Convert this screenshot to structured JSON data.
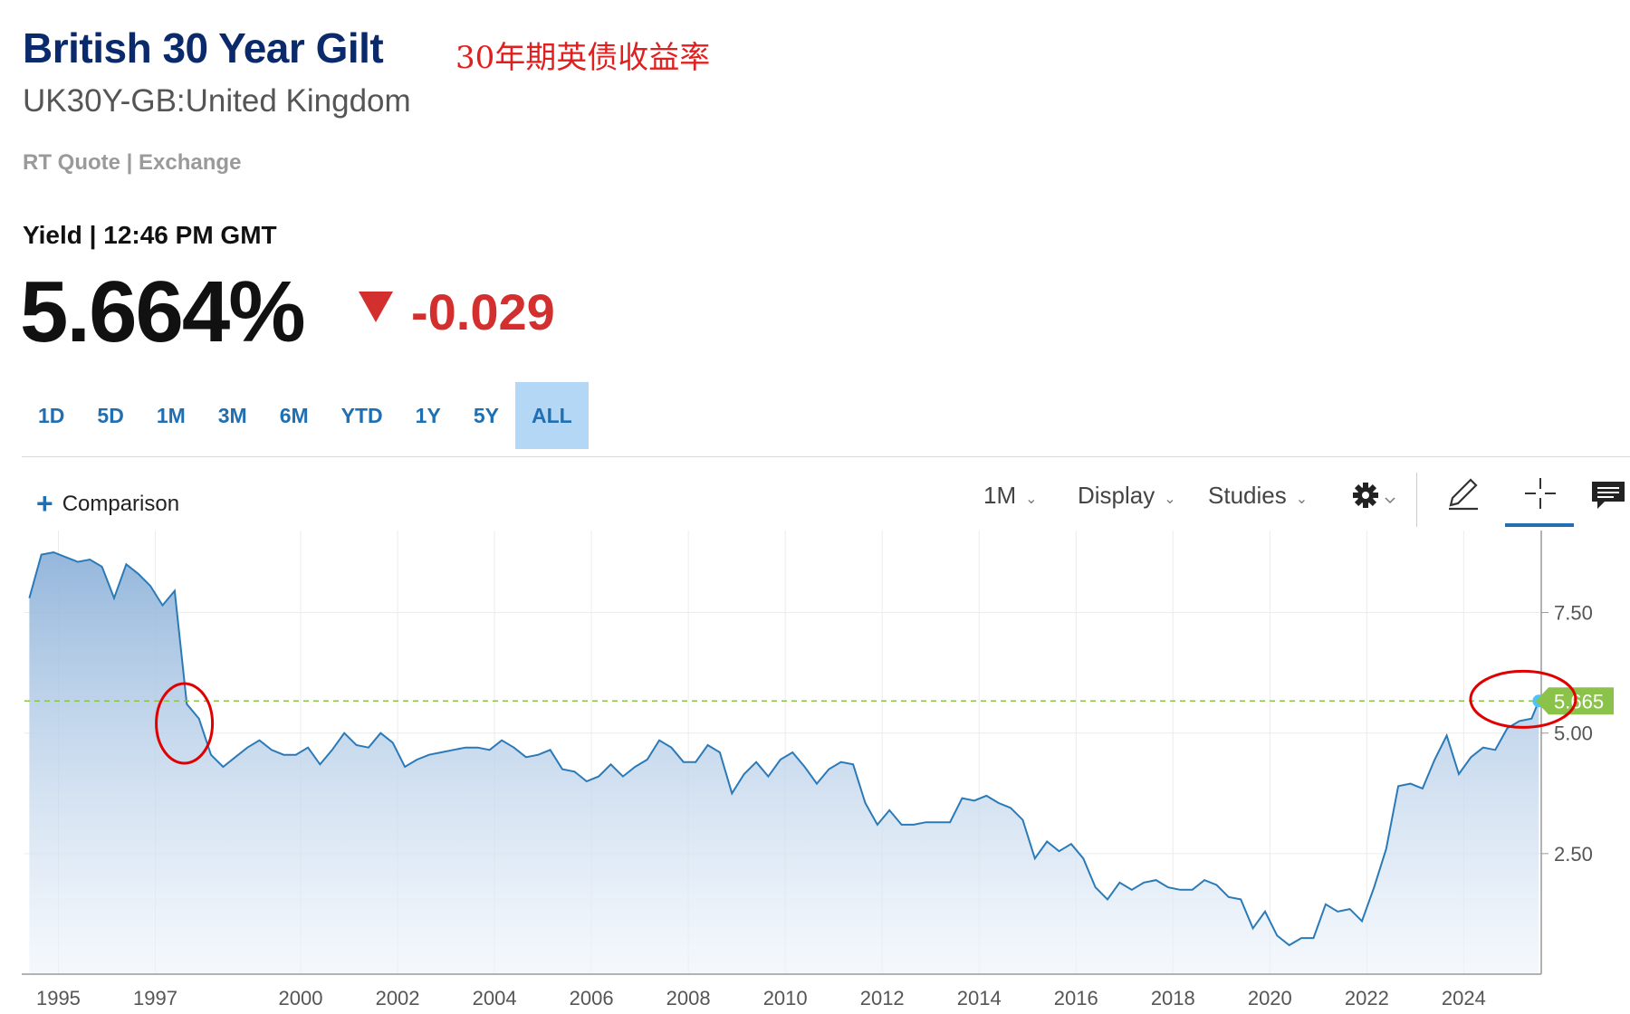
{
  "header": {
    "title": "British 30 Year Gilt",
    "annotation_cn": "30年期英债收益率",
    "subtitle": "UK30Y-GB:United Kingdom",
    "quote_source": "RT Quote | Exchange",
    "yield_label": "Yield | 12:46 PM GMT",
    "yield_value": "5.664%",
    "change_value": "-0.029",
    "change_direction": "down",
    "change_color": "#d32f2f"
  },
  "range_tabs": [
    {
      "label": "1D",
      "active": false
    },
    {
      "label": "5D",
      "active": false
    },
    {
      "label": "1M",
      "active": false
    },
    {
      "label": "3M",
      "active": false
    },
    {
      "label": "6M",
      "active": false
    },
    {
      "label": "YTD",
      "active": false
    },
    {
      "label": "1Y",
      "active": false
    },
    {
      "label": "5Y",
      "active": false
    },
    {
      "label": "ALL",
      "active": true
    }
  ],
  "toolbar": {
    "comparison_label": "Comparison",
    "interval_label": "1M",
    "display_label": "Display",
    "studies_label": "Studies",
    "icons": [
      "gear-icon",
      "pencil-icon",
      "crosshair-icon",
      "comment-icon"
    ]
  },
  "chart_data": {
    "type": "area",
    "title": "",
    "xlabel": "",
    "ylabel": "",
    "x_ticks": [
      "1995",
      "1997",
      "2000",
      "2002",
      "2004",
      "2006",
      "2008",
      "2010",
      "2012",
      "2014",
      "2016",
      "2018",
      "2020",
      "2022",
      "2024"
    ],
    "y_ticks": [
      "7.50",
      "5.00",
      "2.50"
    ],
    "ylim": [
      0,
      9.2
    ],
    "xlim": [
      1994.3,
      2025.6
    ],
    "grid": true,
    "current_value_label": "5.665",
    "current_value": 5.665,
    "line_color": "#2a7ab8",
    "reference_line_color": "#8bc34a",
    "annotations": [
      {
        "type": "circle",
        "color": "#e00000",
        "at_x": 1997.6,
        "at_y": 5.2
      },
      {
        "type": "circle",
        "color": "#e00000",
        "at_x": 2025.3,
        "at_y": 5.7
      }
    ],
    "series": [
      {
        "x": [
          1994.4,
          1994.65,
          1994.9,
          1995.15,
          1995.4,
          1995.65,
          1995.9,
          1996.15,
          1996.4,
          1996.65,
          1996.9,
          1997.15,
          1997.4,
          1997.65,
          1997.9,
          1998.15,
          1998.4,
          1998.65,
          1998.9,
          1999.15,
          1999.4,
          1999.65,
          1999.9,
          2000.15,
          2000.4,
          2000.65,
          2000.9,
          2001.15,
          2001.4,
          2001.65,
          2001.9,
          2002.15,
          2002.4,
          2002.65,
          2002.9,
          2003.15,
          2003.4,
          2003.65,
          2003.9,
          2004.15,
          2004.4,
          2004.65,
          2004.9,
          2005.15,
          2005.4,
          2005.65,
          2005.9,
          2006.15,
          2006.4,
          2006.65,
          2006.9,
          2007.15,
          2007.4,
          2007.65,
          2007.9,
          2008.15,
          2008.4,
          2008.65,
          2008.9,
          2009.15,
          2009.4,
          2009.65,
          2009.9,
          2010.15,
          2010.4,
          2010.65,
          2010.9,
          2011.15,
          2011.4,
          2011.65,
          2011.9,
          2012.15,
          2012.4,
          2012.65,
          2012.9,
          2013.15,
          2013.4,
          2013.65,
          2013.9,
          2014.15,
          2014.4,
          2014.65,
          2014.9,
          2015.15,
          2015.4,
          2015.65,
          2015.9,
          2016.15,
          2016.4,
          2016.65,
          2016.9,
          2017.15,
          2017.4,
          2017.65,
          2017.9,
          2018.15,
          2018.4,
          2018.65,
          2018.9,
          2019.15,
          2019.4,
          2019.65,
          2019.9,
          2020.15,
          2020.4,
          2020.65,
          2020.9,
          2021.15,
          2021.4,
          2021.65,
          2021.9,
          2022.15,
          2022.4,
          2022.65,
          2022.9,
          2023.15,
          2023.4,
          2023.65,
          2023.9,
          2024.15,
          2024.4,
          2024.65,
          2024.9,
          2025.15,
          2025.4,
          2025.55
        ],
        "y": [
          7.8,
          8.7,
          8.75,
          8.65,
          8.55,
          8.6,
          8.45,
          7.8,
          8.5,
          8.3,
          8.05,
          7.65,
          7.95,
          5.6,
          5.3,
          4.55,
          4.3,
          4.5,
          4.7,
          4.85,
          4.65,
          4.55,
          4.55,
          4.7,
          4.35,
          4.65,
          5.0,
          4.75,
          4.7,
          5.0,
          4.8,
          4.3,
          4.45,
          4.55,
          4.6,
          4.65,
          4.7,
          4.7,
          4.65,
          4.85,
          4.7,
          4.5,
          4.55,
          4.65,
          4.25,
          4.2,
          4.0,
          4.1,
          4.35,
          4.1,
          4.3,
          4.45,
          4.85,
          4.7,
          4.4,
          4.4,
          4.75,
          4.6,
          3.75,
          4.15,
          4.4,
          4.1,
          4.45,
          4.6,
          4.3,
          3.95,
          4.25,
          4.4,
          4.35,
          3.55,
          3.1,
          3.4,
          3.1,
          3.1,
          3.15,
          3.15,
          3.15,
          3.65,
          3.6,
          3.7,
          3.55,
          3.45,
          3.2,
          2.4,
          2.75,
          2.55,
          2.7,
          2.4,
          1.8,
          1.55,
          1.9,
          1.75,
          1.9,
          1.95,
          1.8,
          1.75,
          1.75,
          1.95,
          1.85,
          1.6,
          1.55,
          0.95,
          1.3,
          0.8,
          0.6,
          0.75,
          0.75,
          1.45,
          1.3,
          1.35,
          1.1,
          1.8,
          2.6,
          3.9,
          3.95,
          3.85,
          4.45,
          4.95,
          4.15,
          4.5,
          4.7,
          4.65,
          5.1,
          5.25,
          5.3,
          5.665
        ]
      }
    ]
  }
}
